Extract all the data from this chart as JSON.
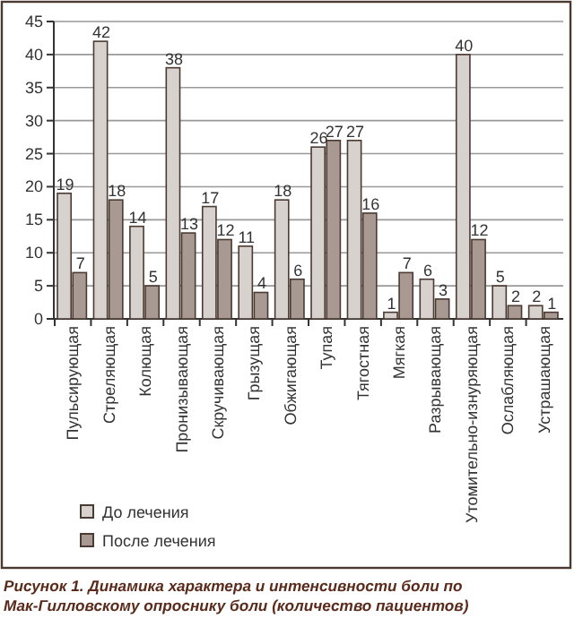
{
  "chart_data": {
    "type": "bar",
    "categories": [
      "Пульсирующая",
      "Стреляющая",
      "Колющая",
      "Пронизывающая",
      "Скручивающая",
      "Грызущая",
      "Обжигающая",
      "Тупая",
      "Тягостная",
      "Мягкая",
      "Разрывающая",
      "Утомительно-изнуряющая",
      "Ослабляющая",
      "Устрашающая"
    ],
    "series": [
      {
        "name": "До лечения",
        "color": "#d8d2cf",
        "values": [
          19,
          42,
          14,
          38,
          17,
          11,
          18,
          26,
          27,
          1,
          6,
          40,
          5,
          2
        ]
      },
      {
        "name": "После лечения",
        "color": "#a89992",
        "values": [
          7,
          18,
          5,
          13,
          12,
          4,
          6,
          27,
          16,
          7,
          3,
          12,
          2,
          1
        ]
      }
    ],
    "ylim": [
      0,
      45
    ],
    "yticks": [
      0,
      5,
      10,
      15,
      20,
      25,
      30,
      35,
      40,
      45
    ],
    "grid": "y",
    "data_labels": true,
    "legend": "bottom left",
    "annotations": [
      "Рисунок 1. Динамика характера и интенсивности боли по Мак-Гилловскому опроснику боли (количество пациентов)"
    ]
  }
}
